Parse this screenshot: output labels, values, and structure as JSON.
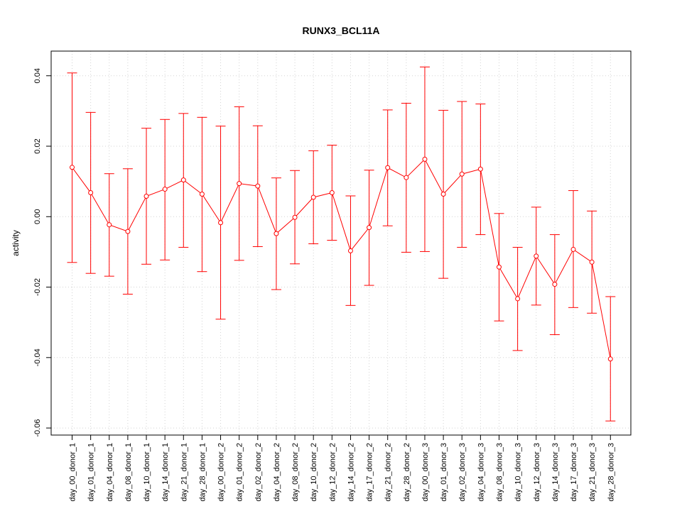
{
  "chart_data": {
    "type": "line",
    "title": "RUNX3_BCL11A",
    "xlabel": "",
    "ylabel": "activity",
    "ylim": [
      -0.062,
      0.047
    ],
    "y_ticks": [
      -0.06,
      -0.04,
      -0.02,
      0.0,
      0.02,
      0.04
    ],
    "y_tick_labels": [
      "-0.06",
      "-0.04",
      "-0.02",
      "0.00",
      "0.02",
      "0.04"
    ],
    "grid": true,
    "series_color": "#ff0000",
    "categories": [
      "day_00_donor_1",
      "day_01_donor_1",
      "day_04_donor_1",
      "day_08_donor_1",
      "day_10_donor_1",
      "day_14_donor_1",
      "day_21_donor_1",
      "day_28_donor_1",
      "day_00_donor_2",
      "day_01_donor_2",
      "day_02_donor_2",
      "day_04_donor_2",
      "day_08_donor_2",
      "day_10_donor_2",
      "day_12_donor_2",
      "day_14_donor_2",
      "day_17_donor_2",
      "day_21_donor_2",
      "day_28_donor_2",
      "day_00_donor_3",
      "day_01_donor_3",
      "day_02_donor_3",
      "day_04_donor_3",
      "day_08_donor_3",
      "day_10_donor_3",
      "day_12_donor_3",
      "day_14_donor_3",
      "day_17_donor_3",
      "day_21_donor_3",
      "day_28_donor_3"
    ],
    "values": [
      0.014,
      0.0068,
      -0.0023,
      -0.0042,
      0.0058,
      0.0078,
      0.0104,
      0.0064,
      -0.0017,
      0.0094,
      0.0087,
      -0.0048,
      -0.0002,
      0.0055,
      0.0068,
      -0.0097,
      -0.0031,
      0.0139,
      0.0111,
      0.0163,
      0.0064,
      0.0121,
      0.0135,
      -0.0143,
      -0.0233,
      -0.0112,
      -0.0192,
      -0.0093,
      -0.0129,
      -0.0404
    ],
    "upper": [
      0.0408,
      0.0296,
      0.0122,
      0.0136,
      0.0251,
      0.0276,
      0.0293,
      0.0282,
      0.0257,
      0.0312,
      0.0258,
      0.011,
      0.0131,
      0.0187,
      0.0203,
      0.0059,
      0.0132,
      0.0303,
      0.0322,
      0.0425,
      0.0302,
      0.0327,
      0.032,
      0.0009,
      -0.0087,
      0.0027,
      -0.0051,
      0.0074,
      0.0016,
      -0.0227
    ],
    "lower": [
      -0.013,
      -0.0161,
      -0.0169,
      -0.022,
      -0.0135,
      -0.0123,
      -0.0087,
      -0.0156,
      -0.0291,
      -0.0124,
      -0.0085,
      -0.0207,
      -0.0134,
      -0.0077,
      -0.0067,
      -0.0252,
      -0.0195,
      -0.0026,
      -0.0101,
      -0.0099,
      -0.0175,
      -0.0087,
      -0.0051,
      -0.0296,
      -0.038,
      -0.0251,
      -0.0335,
      -0.0258,
      -0.0274,
      -0.058
    ]
  }
}
